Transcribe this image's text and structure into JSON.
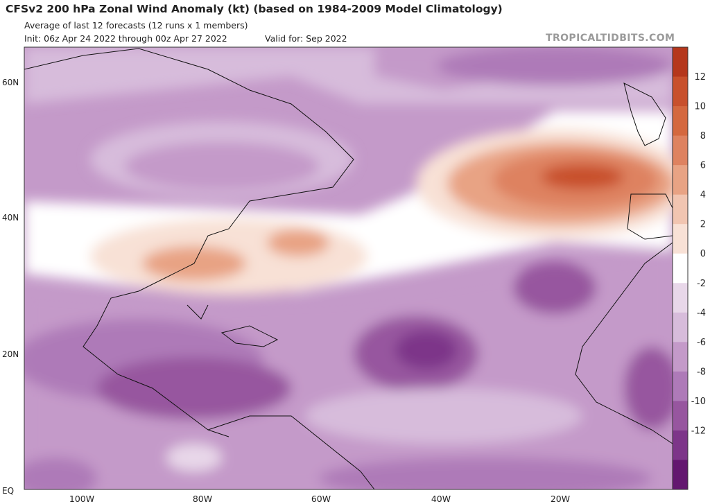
{
  "header": {
    "title": "CFSv2 200 hPa Zonal Wind Anomaly (kt) (based on 1984-2009 Model Climatology)",
    "subtitle": "Average of last 12 forecasts (12 runs x 1 members)",
    "init": "Init: 06z Apr 24 2022 through 00z Apr 27 2022",
    "valid": "Valid for: Sep 2022",
    "brand": "TROPICALTIDBITS.COM"
  },
  "map": {
    "latitude_labels": [
      "60N",
      "40N",
      "20N",
      "EQ"
    ],
    "longitude_labels": [
      "100W",
      "80W",
      "60W",
      "40W",
      "20W"
    ],
    "land_color": "#ffffff",
    "border_color": "#111111"
  },
  "colorbar": {
    "tick_labels": [
      "12",
      "10",
      "8",
      "6",
      "4",
      "2",
      "0",
      "-2",
      "-4",
      "-6",
      "-8",
      "-10",
      "-12"
    ],
    "colors_top_to_bottom": [
      "#b5371c",
      "#c8502c",
      "#d4683f",
      "#de8260",
      "#e8a384",
      "#f1c5b1",
      "#f8e1d6",
      "#ffffff",
      "#e8d7e9",
      "#d7bcdb",
      "#c49ac9",
      "#ae7ab8",
      "#97569f",
      "#7d3589",
      "#63176f"
    ]
  },
  "anomaly_features": [
    {
      "label": "maximum easterly anomaly",
      "location": "central tropical Atlantic",
      "value_kt": -12
    },
    {
      "label": "maximum westerly anomaly",
      "location": "eastern North Atlantic near Iberia",
      "value_kt": 8
    }
  ]
}
